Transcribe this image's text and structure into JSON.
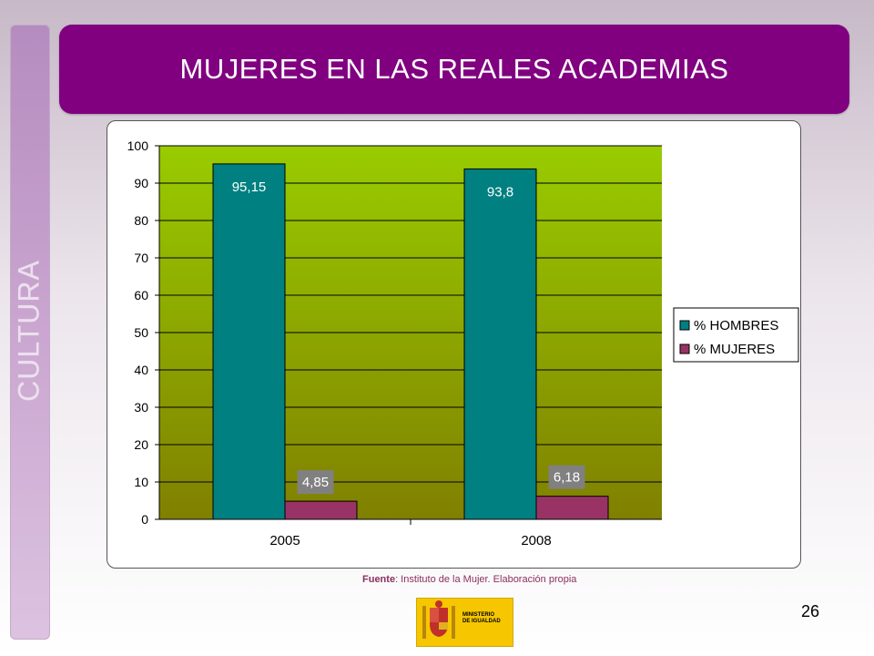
{
  "slide": {
    "title": "MUJERES EN LAS REALES ACADEMIAS",
    "side_label": "CULTURA",
    "page_number": "26",
    "source_label": "Fuente",
    "source_text": ": Instituto de la Mujer. Elaboración propia",
    "logo_line1": "MINISTERIO",
    "logo_line2": "DE IGUALDAD",
    "colors": {
      "title_bar": "#800080",
      "side_bar": "#b58cbf",
      "logo": "#f6c700"
    }
  },
  "chart_data": {
    "type": "bar",
    "categories": [
      "2005",
      "2008"
    ],
    "series": [
      {
        "name": "% HOMBRES",
        "values": [
          95.15,
          93.8
        ],
        "labels": [
          "95,15",
          "93,8"
        ],
        "color": "#008080"
      },
      {
        "name": "% MUJERES",
        "values": [
          4.85,
          6.18
        ],
        "labels": [
          "4,85",
          "6,18"
        ],
        "color": "#993366"
      }
    ],
    "ylim": [
      0,
      100
    ],
    "yticks": [
      0,
      10,
      20,
      30,
      40,
      50,
      60,
      70,
      80,
      90,
      100
    ],
    "grid": true,
    "legend_position": "right",
    "plot_background": [
      "#99cc00",
      "#808000"
    ]
  }
}
